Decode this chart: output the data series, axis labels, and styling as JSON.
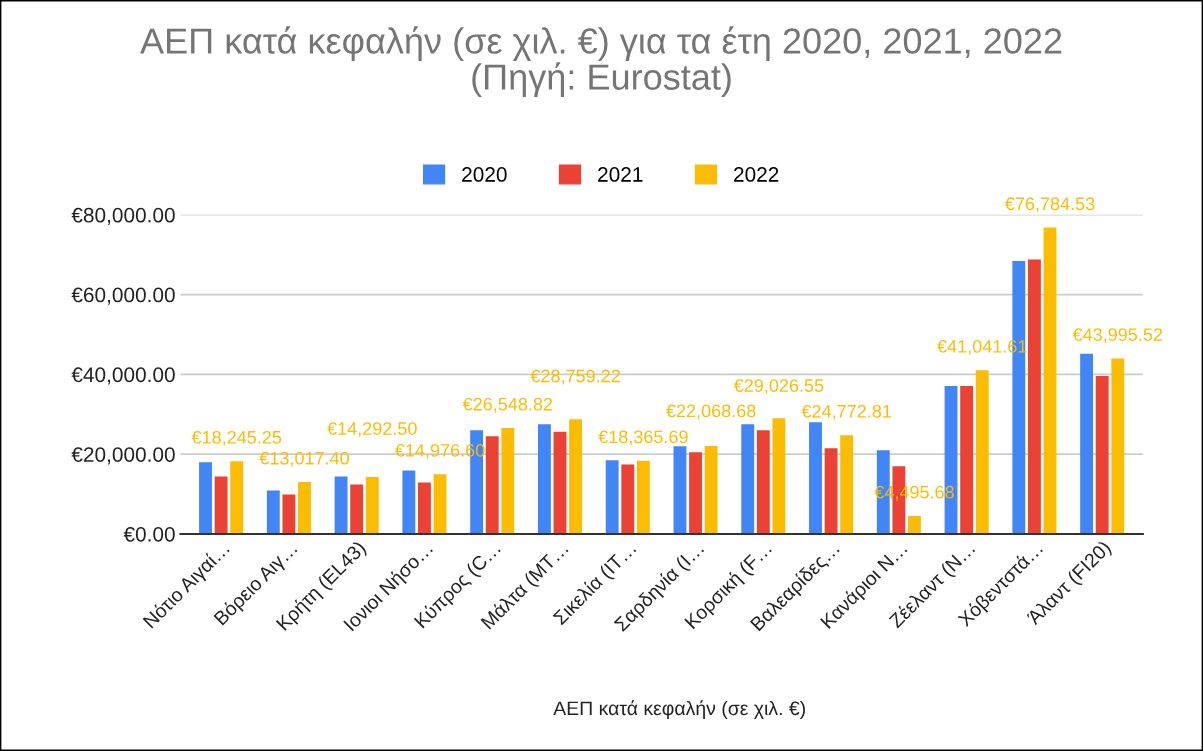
{
  "chart_data": {
    "type": "bar",
    "title": "ΑΕΠ κατά κεφαλήν (σε χιλ. €) για τα έτη 2020, 2021, 2022\n(Πηγή: Eurostat)",
    "xlabel": "ΑΕΠ κατά κεφαλήν (σε χιλ. €)",
    "categories": [
      "Νότιο Αιγαί…",
      "Βόρειο Αιγ…",
      "Κρήτη (EL43)",
      "Ιονιοι Νήσο…",
      "Κύπρος (C…",
      "Μάλτα (MT…",
      "Σικελία (IT…",
      "Σαρδηνία (I…",
      "Κορσική (F…",
      "Βαλεαρίδες…",
      "Κανάριοι Ν…",
      "Ζέελαντ (N…",
      "Χόβεντστά…",
      "Άλαντ (FI20)"
    ],
    "series": [
      {
        "name": "2020",
        "color": "#4285f4",
        "values": [
          18000,
          10900,
          14400,
          15900,
          26000,
          27500,
          18500,
          22000,
          27500,
          28000,
          21000,
          37100,
          68400,
          45200
        ]
      },
      {
        "name": "2021",
        "color": "#ea4335",
        "values": [
          14400,
          9900,
          12400,
          12900,
          24500,
          25600,
          17400,
          20500,
          26000,
          21500,
          17000,
          37100,
          68800,
          39600
        ]
      },
      {
        "name": "2022",
        "color": "#fbbc04",
        "values": [
          18245.25,
          13017.4,
          14292.5,
          14976.6,
          26548.82,
          28759.22,
          18365.69,
          22068.68,
          29026.55,
          24772.81,
          4495.68,
          41041.61,
          76784.53,
          43995.52
        ],
        "value_labels": [
          "€18,245.25",
          "€13,017.40",
          "€14,292.50",
          "€14,976.60",
          "€26,548.82",
          "€28,759.22",
          "€18,365.69",
          "€22,068.68",
          "€29,026.55",
          "€24,772.81",
          "€4,495.68",
          "€41,041.61",
          "€76,784.53",
          "€43,995.52"
        ]
      }
    ],
    "ylim": [
      0,
      80000
    ],
    "yticks": [
      {
        "value": 0,
        "label": "€0.00"
      },
      {
        "value": 20000,
        "label": "€20,000.00"
      },
      {
        "value": 40000,
        "label": "€40,000.00"
      },
      {
        "value": 60000,
        "label": "€60,000.00"
      },
      {
        "value": 80000,
        "label": "€80,000.00"
      }
    ],
    "grid": "y",
    "legend": "top"
  }
}
